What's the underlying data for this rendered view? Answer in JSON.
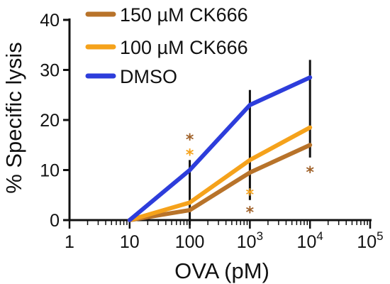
{
  "chart_data": {
    "type": "line",
    "title": "",
    "xlabel": "OVA (pM)",
    "ylabel": "% Specific lysis",
    "x_scale": "log",
    "xlim": [
      1,
      100000
    ],
    "ylim": [
      0,
      40
    ],
    "x_ticks": [
      {
        "value": 1,
        "base": "1",
        "exp": ""
      },
      {
        "value": 10,
        "base": "10",
        "exp": ""
      },
      {
        "value": 100,
        "base": "100",
        "exp": ""
      },
      {
        "value": 1000,
        "base": "10",
        "exp": "3"
      },
      {
        "value": 10000,
        "base": "10",
        "exp": "4"
      },
      {
        "value": 100000,
        "base": "10",
        "exp": "5"
      }
    ],
    "y_ticks": [
      0,
      10,
      20,
      30,
      40
    ],
    "grid": false,
    "legend": "top-left",
    "x": [
      10,
      100,
      1000,
      10000
    ],
    "series": [
      {
        "name": "150 µM CK666",
        "color": "#b8732a",
        "values": [
          0,
          2,
          9.5,
          15
        ],
        "errors": [
          0,
          0,
          0,
          0
        ]
      },
      {
        "name": "100 µM CK666",
        "color": "#f5a21b",
        "values": [
          0,
          3.5,
          12,
          18.5
        ],
        "errors": [
          0,
          0,
          0,
          0
        ]
      },
      {
        "name": "DMSO",
        "color": "#2d3ddb",
        "values": [
          0,
          10,
          23,
          28.5
        ],
        "errors": [
          0,
          0,
          0,
          0
        ]
      }
    ],
    "error_bars": [
      {
        "x": 100,
        "low": -1,
        "high": 12
      },
      {
        "x": 1000,
        "low": 4,
        "high": 26
      },
      {
        "x": 10000,
        "low": 12.5,
        "high": 32
      }
    ],
    "annotations": [
      {
        "x": 100,
        "y": 17,
        "text": "*",
        "color": "#a0622a"
      },
      {
        "x": 100,
        "y": 14,
        "text": "*",
        "color": "#f5a21b"
      },
      {
        "x": 1000,
        "y": 6,
        "text": "*",
        "color": "#f5a21b"
      },
      {
        "x": 1000,
        "y": 2.5,
        "text": "*",
        "color": "#a0622a"
      },
      {
        "x": 10000,
        "y": 10.5,
        "text": "*",
        "color": "#a0622a"
      }
    ]
  }
}
